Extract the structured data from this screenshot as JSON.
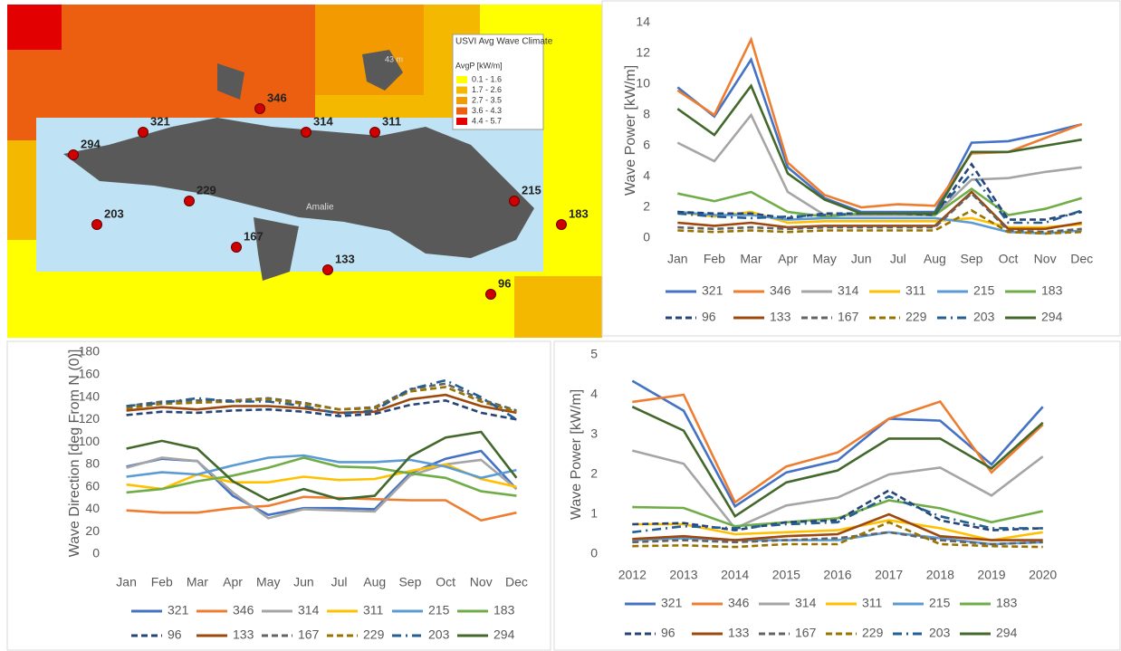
{
  "map": {
    "legend": {
      "title": "USVI Avg Wave Climate",
      "unit": "AvgP [kW/m]",
      "items": [
        {
          "label": "0.1 - 1.6",
          "color": "#ffff00"
        },
        {
          "label": "1.7 - 2.6",
          "color": "#f5b800"
        },
        {
          "label": "2.7 - 3.5",
          "color": "#f29a00"
        },
        {
          "label": "3.6 - 4.3",
          "color": "#ec5f10"
        },
        {
          "label": "4.4 - 5.7",
          "color": "#e30000"
        }
      ]
    },
    "sites": [
      "321",
      "346",
      "314",
      "311",
      "294",
      "229",
      "215",
      "203",
      "183",
      "167",
      "133",
      "96"
    ],
    "labels": [
      "Amalie",
      "43 m"
    ]
  },
  "chart_data": [
    {
      "type": "line",
      "y_label": "Wave Power [kW/m]",
      "grid": false,
      "categories": [
        "Jan",
        "Feb",
        "Mar",
        "Apr",
        "May",
        "Jun",
        "Jul",
        "Aug",
        "Sep",
        "Oct",
        "Nov",
        "Dec"
      ],
      "ylim": [
        0,
        14
      ],
      "yticks": [
        0,
        2,
        4,
        6,
        8,
        10,
        12,
        14
      ],
      "series": [
        {
          "name": "321",
          "color": "#4472c4",
          "dash": "solid",
          "values": [
            9.8,
            7.9,
            11.6,
            4.6,
            2.6,
            1.7,
            1.7,
            1.7,
            6.2,
            6.3,
            6.8,
            7.4
          ]
        },
        {
          "name": "346",
          "color": "#ed7d31",
          "dash": "solid",
          "values": [
            9.6,
            8.0,
            12.9,
            4.9,
            2.8,
            2.0,
            2.2,
            2.1,
            5.5,
            5.6,
            6.5,
            7.4
          ]
        },
        {
          "name": "314",
          "color": "#a5a5a5",
          "dash": "solid",
          "values": [
            6.2,
            5.0,
            8.0,
            3.0,
            1.5,
            1.5,
            1.5,
            1.5,
            3.8,
            3.9,
            4.3,
            4.6
          ]
        },
        {
          "name": "311",
          "color": "#ffc000",
          "dash": "solid",
          "values": [
            1.7,
            1.4,
            1.7,
            1.0,
            1.1,
            1.1,
            1.1,
            1.1,
            1.3,
            0.7,
            0.7,
            0.9
          ]
        },
        {
          "name": "215",
          "color": "#5b9bd5",
          "dash": "solid",
          "values": [
            1.7,
            1.5,
            1.5,
            1.2,
            1.3,
            1.3,
            1.3,
            1.3,
            1.0,
            0.4,
            0.3,
            0.5
          ]
        },
        {
          "name": "183",
          "color": "#70ad47",
          "dash": "solid",
          "values": [
            2.9,
            2.4,
            3.0,
            1.7,
            1.4,
            1.6,
            1.6,
            1.5,
            3.2,
            1.5,
            1.9,
            2.6
          ]
        },
        {
          "name": "96",
          "color": "#264478",
          "dash": "dashed",
          "values": [
            1.7,
            1.6,
            1.6,
            1.3,
            1.6,
            1.6,
            1.6,
            1.5,
            4.8,
            1.2,
            1.2,
            1.7
          ]
        },
        {
          "name": "133",
          "color": "#9e480e",
          "dash": "solid",
          "values": [
            1.0,
            0.8,
            1.0,
            0.7,
            0.8,
            0.8,
            0.8,
            0.8,
            3.0,
            0.6,
            0.6,
            1.0
          ]
        },
        {
          "name": "167",
          "color": "#636363",
          "dash": "dashed",
          "values": [
            0.7,
            0.6,
            0.7,
            0.6,
            0.7,
            0.7,
            0.7,
            0.7,
            2.9,
            0.5,
            0.4,
            0.6
          ]
        },
        {
          "name": "229",
          "color": "#997300",
          "dash": "dashed",
          "values": [
            0.5,
            0.4,
            0.5,
            0.4,
            0.5,
            0.5,
            0.5,
            0.5,
            1.8,
            0.4,
            0.3,
            0.4
          ]
        },
        {
          "name": "203",
          "color": "#255e91",
          "dash": "dash-dot",
          "values": [
            1.6,
            1.4,
            1.3,
            1.4,
            1.5,
            1.6,
            1.6,
            1.6,
            4.2,
            1.0,
            1.0,
            1.8
          ]
        },
        {
          "name": "294",
          "color": "#43682b",
          "dash": "solid",
          "values": [
            8.4,
            6.7,
            9.9,
            4.2,
            2.5,
            1.6,
            1.6,
            1.6,
            5.6,
            5.6,
            6.0,
            6.4
          ]
        }
      ]
    },
    {
      "type": "line",
      "y_label": "Wave Direction [deg From N (0)]",
      "grid": false,
      "categories": [
        "Jan",
        "Feb",
        "Mar",
        "Apr",
        "May",
        "Jun",
        "Jul",
        "Aug",
        "Sep",
        "Oct",
        "Nov",
        "Dec"
      ],
      "ylim": [
        0,
        180
      ],
      "yticks": [
        0,
        20,
        40,
        60,
        80,
        100,
        120,
        140,
        160,
        180
      ],
      "series": [
        {
          "name": "321",
          "color": "#4472c4",
          "dash": "solid",
          "values": [
            78,
            85,
            83,
            52,
            35,
            41,
            41,
            40,
            72,
            85,
            92,
            58
          ]
        },
        {
          "name": "346",
          "color": "#ed7d31",
          "dash": "solid",
          "values": [
            39,
            37,
            37,
            41,
            43,
            51,
            50,
            49,
            48,
            48,
            30,
            37
          ]
        },
        {
          "name": "314",
          "color": "#a5a5a5",
          "dash": "solid",
          "values": [
            77,
            86,
            83,
            55,
            32,
            40,
            39,
            38,
            70,
            80,
            84,
            58
          ]
        },
        {
          "name": "311",
          "color": "#ffc000",
          "dash": "solid",
          "values": [
            62,
            58,
            71,
            64,
            64,
            69,
            66,
            67,
            74,
            80,
            67,
            60
          ]
        },
        {
          "name": "215",
          "color": "#5b9bd5",
          "dash": "solid",
          "values": [
            69,
            73,
            71,
            79,
            86,
            88,
            82,
            82,
            84,
            78,
            68,
            75
          ]
        },
        {
          "name": "183",
          "color": "#70ad47",
          "dash": "solid",
          "values": [
            55,
            58,
            65,
            70,
            77,
            86,
            78,
            77,
            72,
            68,
            56,
            52
          ]
        },
        {
          "name": "96",
          "color": "#264478",
          "dash": "dashed",
          "values": [
            124,
            127,
            126,
            128,
            129,
            127,
            123,
            125,
            133,
            137,
            126,
            120
          ]
        },
        {
          "name": "133",
          "color": "#9e480e",
          "dash": "solid",
          "values": [
            128,
            131,
            129,
            132,
            132,
            130,
            126,
            127,
            138,
            142,
            132,
            126
          ]
        },
        {
          "name": "167",
          "color": "#636363",
          "dash": "dashed",
          "values": [
            132,
            136,
            137,
            137,
            139,
            135,
            129,
            131,
            147,
            152,
            138,
            128
          ]
        },
        {
          "name": "229",
          "color": "#997300",
          "dash": "dashed",
          "values": [
            130,
            134,
            135,
            136,
            138,
            134,
            129,
            130,
            145,
            149,
            136,
            127
          ]
        },
        {
          "name": "203",
          "color": "#255e91",
          "dash": "dash-dot",
          "values": [
            132,
            135,
            139,
            136,
            136,
            132,
            125,
            128,
            147,
            155,
            140,
            120
          ]
        },
        {
          "name": "294",
          "color": "#43682b",
          "dash": "solid",
          "values": [
            94,
            101,
            94,
            65,
            48,
            58,
            49,
            52,
            87,
            104,
            109,
            68
          ]
        }
      ]
    },
    {
      "type": "line",
      "y_label": "Wave Power [kW/m]",
      "grid": false,
      "categories": [
        "2012",
        "2013",
        "2014",
        "2015",
        "2016",
        "2017",
        "2018",
        "2019",
        "2020"
      ],
      "ylim": [
        0,
        5
      ],
      "yticks": [
        0,
        1,
        2,
        3,
        4,
        5
      ],
      "series": [
        {
          "name": "321",
          "color": "#4472c4",
          "dash": "solid",
          "values": [
            4.35,
            3.6,
            1.2,
            2.05,
            2.35,
            3.4,
            3.35,
            2.25,
            3.7
          ]
        },
        {
          "name": "346",
          "color": "#ed7d31",
          "dash": "solid",
          "values": [
            3.82,
            4.0,
            1.3,
            2.2,
            2.55,
            3.4,
            3.83,
            2.05,
            3.25
          ]
        },
        {
          "name": "314",
          "color": "#a5a5a5",
          "dash": "solid",
          "values": [
            2.6,
            2.27,
            0.65,
            1.22,
            1.42,
            2.0,
            2.17,
            1.47,
            2.45
          ]
        },
        {
          "name": "311",
          "color": "#ffc000",
          "dash": "solid",
          "values": [
            0.75,
            0.75,
            0.5,
            0.55,
            0.6,
            0.85,
            0.65,
            0.35,
            0.55
          ]
        },
        {
          "name": "215",
          "color": "#5b9bd5",
          "dash": "solid",
          "values": [
            0.35,
            0.4,
            0.35,
            0.35,
            0.35,
            0.55,
            0.4,
            0.25,
            0.3
          ]
        },
        {
          "name": "183",
          "color": "#70ad47",
          "dash": "solid",
          "values": [
            1.18,
            1.16,
            0.7,
            0.8,
            0.9,
            1.35,
            1.15,
            0.8,
            1.08
          ]
        },
        {
          "name": "96",
          "color": "#264478",
          "dash": "dashed",
          "values": [
            0.75,
            0.78,
            0.6,
            0.8,
            0.85,
            1.6,
            0.85,
            0.6,
            0.65
          ]
        },
        {
          "name": "133",
          "color": "#9e480e",
          "dash": "solid",
          "values": [
            0.38,
            0.45,
            0.35,
            0.45,
            0.5,
            1.0,
            0.45,
            0.35,
            0.35
          ]
        },
        {
          "name": "167",
          "color": "#636363",
          "dash": "dashed",
          "values": [
            0.3,
            0.35,
            0.3,
            0.35,
            0.4,
            0.55,
            0.35,
            0.25,
            0.3
          ]
        },
        {
          "name": "229",
          "color": "#997300",
          "dash": "dashed",
          "values": [
            0.2,
            0.22,
            0.18,
            0.25,
            0.25,
            0.8,
            0.25,
            0.2,
            0.18
          ]
        },
        {
          "name": "203",
          "color": "#255e91",
          "dash": "dash-dot",
          "values": [
            0.55,
            0.7,
            0.65,
            0.75,
            0.8,
            1.45,
            0.95,
            0.65,
            0.65
          ]
        },
        {
          "name": "294",
          "color": "#43682b",
          "dash": "solid",
          "values": [
            3.7,
            3.1,
            0.95,
            1.8,
            2.1,
            2.9,
            2.9,
            2.15,
            3.3
          ]
        }
      ]
    }
  ]
}
